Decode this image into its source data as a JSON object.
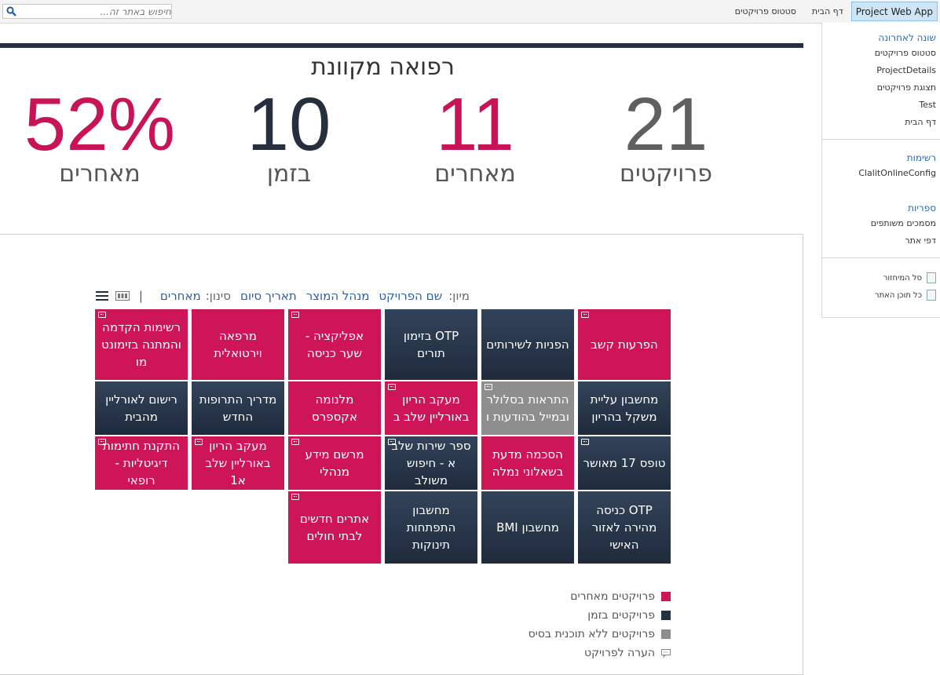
{
  "topbar": {
    "search_placeholder": "חיפוש באתר זה...",
    "nav": [
      "Project Web App",
      "דף הבית",
      "סטטוס פרויקטים"
    ]
  },
  "page": {
    "title": "רפואה מקוונת"
  },
  "stats": [
    {
      "value": "21",
      "label": "פרויקטים",
      "color": "#606060"
    },
    {
      "value": "11",
      "label": "מאחרים",
      "color": "#c81457"
    },
    {
      "value": "10",
      "label": "בזמן",
      "color": "#262f3d"
    },
    {
      "value": "52%",
      "label": "מאחרים",
      "color": "#c81457"
    }
  ],
  "sortbar": {
    "sort_label": "מיון:",
    "sort_options": [
      "שם הפרויקט",
      "מנהל המוצר",
      "תאריך סיום"
    ],
    "filter_label": "סינון:",
    "filter_value": "מאחרים",
    "divider": "|"
  },
  "tiles": [
    {
      "label": "הפרעות קשב",
      "status": "late",
      "comment": true
    },
    {
      "label": "הפניות לשירותים",
      "status": "ontime",
      "comment": false
    },
    {
      "label": "OTP בזימון תורים",
      "status": "ontime",
      "comment": false
    },
    {
      "label": "אפליקציה - שער כניסה",
      "status": "late",
      "comment": true
    },
    {
      "label": "מרפאה וירטואלית",
      "status": "late",
      "comment": false
    },
    {
      "label": "רשימות הקדמה והמתנה בזימונט מו",
      "status": "late",
      "comment": true
    },
    {
      "label": "מחשבון עליית משקל בהריון",
      "status": "ontime",
      "comment": false
    },
    {
      "label": "התראות בסלולר ובמייל בהודעות ו",
      "status": "nobase",
      "comment": true
    },
    {
      "label": "מעקב הריון באורליין שלב ב",
      "status": "late",
      "comment": true
    },
    {
      "label": "מלנומה אקספרס",
      "status": "late",
      "comment": false
    },
    {
      "label": "מדריך התרופות החדש",
      "status": "ontime",
      "comment": false
    },
    {
      "label": "רישום לאורליין מהבית",
      "status": "ontime",
      "comment": false
    },
    {
      "label": "טופס 17 מאושר",
      "status": "ontime",
      "comment": true
    },
    {
      "label": "הסכמה מדעת בשאלוני נמלה",
      "status": "late",
      "comment": false
    },
    {
      "label": "ספר שירות שלב א - חיפוש משולב",
      "status": "ontime",
      "comment": true
    },
    {
      "label": "מרשם מידע מנהלי",
      "status": "late",
      "comment": true
    },
    {
      "label": "מעקב הריון באורליין שלב א1",
      "status": "late",
      "comment": true
    },
    {
      "label": "התקנת חתימות דיגיטליות - רופאי",
      "status": "late",
      "comment": true
    },
    {
      "label": "OTP כניסה מהירה לאזור האישי",
      "status": "ontime",
      "comment": false
    },
    {
      "label": "מחשבון BMI",
      "status": "ontime",
      "comment": false
    },
    {
      "label": "מחשבון התפתחות תינוקות",
      "status": "ontime",
      "comment": false
    },
    {
      "label": "אתרים חדשים לבתי חולים",
      "status": "late",
      "comment": true
    }
  ],
  "legend": [
    {
      "label": "פרויקטים מאחרים",
      "color": "#ce1657"
    },
    {
      "label": "פרויקטים בזמן",
      "color": "#263346"
    },
    {
      "label": "פרויקטים ללא תוכנית בסיס",
      "color": "#8e8e8e"
    },
    {
      "label": "הערה לפרויקט",
      "icon": "comment-icon"
    }
  ],
  "rightnav": {
    "recent_header": "שונה לאחרונה",
    "recent_items": [
      "סטטוס פרויקטים",
      "ProjectDetails",
      "תצוגת פרויקטים",
      "Test",
      "דף הבית"
    ],
    "lists_header": "רשימות",
    "lists_items": [
      "ClalitOnlineConfig"
    ],
    "libraries_header": "ספריות",
    "libraries_items": [
      "מסמכים משותפים",
      "דפי אתר"
    ],
    "recycle_bin": "סל המיחזור",
    "site_contents": "כל תוכן האתר"
  }
}
